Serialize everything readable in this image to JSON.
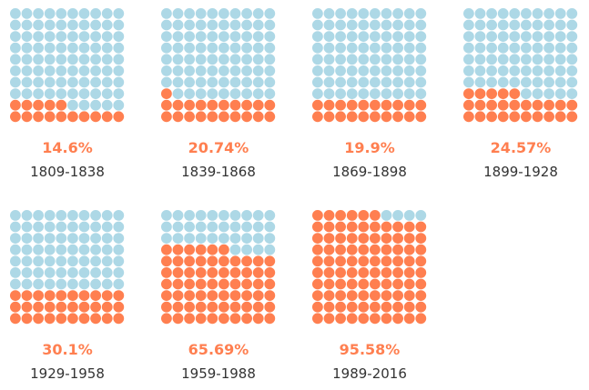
{
  "chart_data": {
    "type": "waffle",
    "grid": "10x10",
    "colors": {
      "filled": "#ff7f50",
      "empty": "#add8e6"
    },
    "panels": [
      {
        "label": "1809-1838",
        "value": 14.6,
        "value_text": "14.6%"
      },
      {
        "label": "1839-1868",
        "value": 20.74,
        "value_text": "20.74%"
      },
      {
        "label": "1869-1898",
        "value": 19.9,
        "value_text": "19.9%"
      },
      {
        "label": "1899-1928",
        "value": 24.57,
        "value_text": "24.57%"
      },
      {
        "label": "1929-1958",
        "value": 30.1,
        "value_text": "30.1%"
      },
      {
        "label": "1959-1988",
        "value": 65.69,
        "value_text": "65.69%"
      },
      {
        "label": "1989-2016",
        "value": 95.58,
        "value_text": "95.58%"
      }
    ]
  }
}
